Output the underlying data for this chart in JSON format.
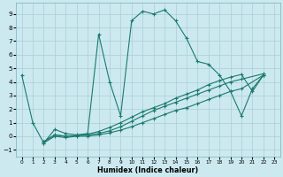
{
  "background_color": "#cce9f0",
  "grid_color": "#aacdd8",
  "line_color": "#1a7a6e",
  "xlabel": "Humidex (Indice chaleur)",
  "xlim": [
    -0.5,
    23.5
  ],
  "ylim": [
    -1.5,
    9.8
  ],
  "yticks": [
    -1,
    0,
    1,
    2,
    3,
    4,
    5,
    6,
    7,
    8,
    9
  ],
  "xticks": [
    0,
    1,
    2,
    3,
    4,
    5,
    6,
    7,
    8,
    9,
    10,
    11,
    12,
    13,
    14,
    15,
    16,
    17,
    18,
    19,
    20,
    21,
    22,
    23
  ],
  "s1x": [
    0,
    1,
    2,
    3,
    4,
    5,
    6,
    7,
    8,
    9,
    10,
    11,
    12,
    13,
    14,
    15,
    16,
    17,
    18,
    19,
    20,
    21,
    22
  ],
  "s1y": [
    4.5,
    1.0,
    -0.5,
    0.5,
    0.2,
    0.1,
    0.2,
    7.5,
    4.0,
    1.5,
    8.5,
    9.2,
    9.0,
    9.3,
    8.5,
    7.2,
    5.5,
    5.3,
    4.5,
    3.3,
    1.5,
    3.5,
    4.5
  ],
  "s2x": [
    2,
    3,
    4,
    5,
    6,
    7,
    8,
    9,
    10,
    11,
    12,
    13,
    14,
    15,
    16,
    17,
    18,
    19,
    20,
    22
  ],
  "s2y": [
    -0.5,
    0.0,
    -0.1,
    0.0,
    0.0,
    0.1,
    0.25,
    0.45,
    0.7,
    1.0,
    1.3,
    1.6,
    1.9,
    2.1,
    2.4,
    2.7,
    3.0,
    3.3,
    3.5,
    4.5
  ],
  "s3x": [
    2,
    3,
    4,
    5,
    6,
    7,
    8,
    9,
    10,
    11,
    12,
    13,
    14,
    15,
    16,
    17,
    18,
    19,
    20,
    22
  ],
  "s3y": [
    -0.4,
    0.1,
    0.0,
    0.05,
    0.1,
    0.2,
    0.4,
    0.7,
    1.1,
    1.5,
    1.9,
    2.2,
    2.5,
    2.8,
    3.1,
    3.4,
    3.7,
    4.0,
    4.2,
    4.6
  ],
  "s4x": [
    2,
    3,
    4,
    5,
    6,
    7,
    8,
    9,
    10,
    11,
    12,
    13,
    14,
    15,
    16,
    17,
    18,
    19,
    20,
    21,
    22
  ],
  "s4y": [
    -0.4,
    0.1,
    0.0,
    0.05,
    0.15,
    0.35,
    0.65,
    1.0,
    1.4,
    1.8,
    2.1,
    2.4,
    2.8,
    3.1,
    3.4,
    3.8,
    4.1,
    4.35,
    4.55,
    3.3,
    4.5
  ]
}
